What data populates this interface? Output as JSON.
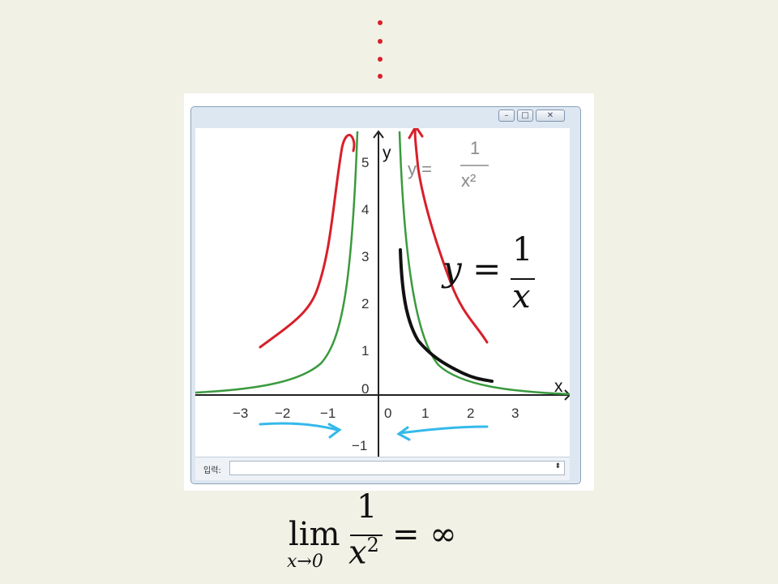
{
  "vertical_ellipsis": {
    "color": "#d8202a",
    "symbol": "⋮"
  },
  "window": {
    "controls": {
      "minimize": "–",
      "maximize": "□",
      "close": "✕"
    },
    "input_bar": {
      "label": "입력:",
      "value": "",
      "spinner": "⬍"
    }
  },
  "graph": {
    "x_axis_label": "x",
    "y_axis_label": "y",
    "x_ticks": [
      "−3",
      "−2",
      "−1",
      "0",
      "1",
      "2",
      "3"
    ],
    "y_ticks": [
      "5",
      "4",
      "3",
      "2",
      "1",
      "0",
      "−1"
    ],
    "formula": {
      "lhs": "y =",
      "numerator": "1",
      "denominator": "x²"
    },
    "colors": {
      "curve": "#3a9a3e",
      "axes": "#222222",
      "red_annotation": "#d8202a",
      "black_annotation": "#111111",
      "blue_arrows": "#35b9ea"
    }
  },
  "overlay_formula": {
    "lhs": "y =",
    "numerator": "1",
    "denominator": "x"
  },
  "limit": {
    "operator": "lim",
    "subscript": "x→0",
    "numerator": "1",
    "denominator": "x",
    "exponent": "2",
    "rhs": "= ∞"
  }
}
